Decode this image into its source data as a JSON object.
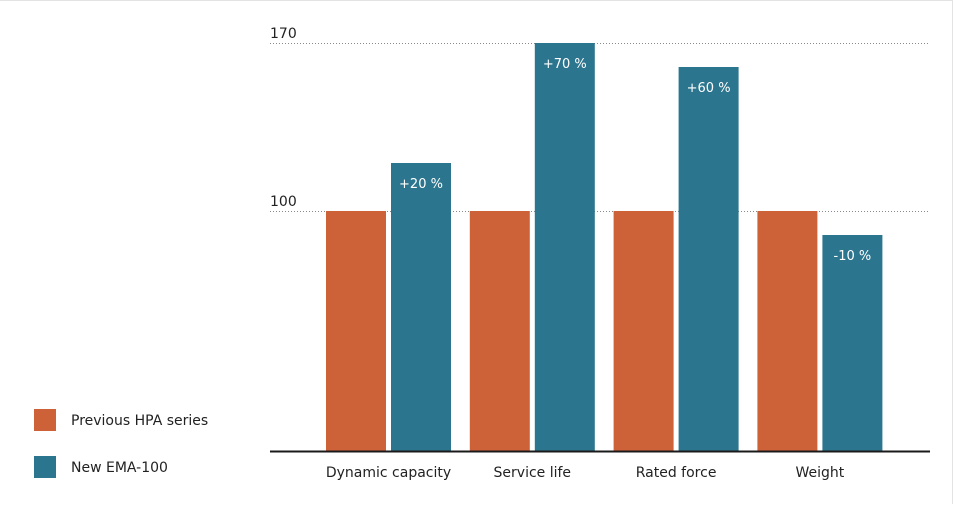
{
  "colors": {
    "previous": "#cd6239",
    "new": "#2c758e",
    "axis": "#1a1a1a",
    "grid": "#8a8a8a",
    "text": "#222222",
    "bar_label": "#ffffff"
  },
  "legend": {
    "items": [
      {
        "label": "Previous HPA series",
        "color": "#cd6239"
      },
      {
        "label": "New EMA-100",
        "color": "#2c758e"
      }
    ]
  },
  "chart_data": {
    "type": "bar",
    "categories": [
      "Dynamic capacity",
      "Service life",
      "Rated force",
      "Weight"
    ],
    "series": [
      {
        "name": "Previous HPA series",
        "values": [
          100,
          100,
          100,
          100
        ]
      },
      {
        "name": "New EMA-100",
        "values": [
          120,
          170,
          160,
          90
        ],
        "labels": [
          "+20 %",
          "+70 %",
          "+60 %",
          "-10 %"
        ]
      }
    ],
    "y_ticks": [
      100,
      170
    ],
    "ylim": [
      0,
      170
    ],
    "grid": "dotted at tick values",
    "legend_position": "bottom-left"
  }
}
